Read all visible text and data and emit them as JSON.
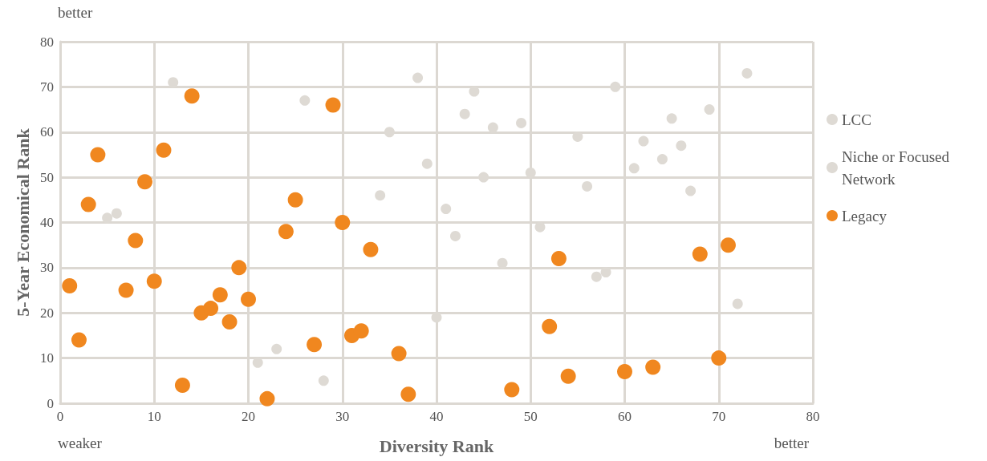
{
  "chart_data": {
    "type": "scatter",
    "xlabel": "Diversity Rank",
    "ylabel": "5-Year Economical Rank",
    "xlim": [
      0,
      80
    ],
    "xticks": [
      0,
      10,
      20,
      30,
      40,
      50,
      60,
      70,
      80
    ],
    "ylim": [
      0,
      80
    ],
    "yticks": [
      0,
      10,
      20,
      30,
      40,
      50,
      60,
      70,
      80
    ],
    "grid": true,
    "legend": "right",
    "marker": "circle",
    "annotations": [
      "better",
      "weaker",
      "better"
    ],
    "series": [
      {
        "name": "LCC",
        "color": "#dedad4",
        "x": [
          43,
          49,
          56,
          47
        ],
        "values": [
          64,
          62,
          48,
          31
        ]
      },
      {
        "name": "Niche or Focused Network",
        "color": "#dedad4",
        "x": [
          12,
          5,
          6,
          26,
          35,
          38,
          39,
          34,
          23,
          21,
          28,
          40,
          44,
          46,
          59,
          73,
          69,
          65,
          55,
          62,
          66,
          64,
          61,
          45,
          50,
          67,
          41,
          42,
          51,
          57,
          58,
          72
        ],
        "values": [
          71,
          41,
          42,
          67,
          60,
          72,
          53,
          46,
          12,
          9,
          5,
          19,
          69,
          61,
          70,
          73,
          65,
          63,
          59,
          58,
          57,
          54,
          52,
          50,
          51,
          47,
          43,
          37,
          39,
          28,
          29,
          22
        ]
      },
      {
        "name": "Legacy",
        "color": "#f0871f",
        "x": [
          1,
          2,
          3,
          4,
          7,
          8,
          9,
          10,
          11,
          13,
          14,
          15,
          16,
          17,
          18,
          19,
          20,
          22,
          24,
          25,
          27,
          29,
          30,
          31,
          32,
          33,
          36,
          37,
          48,
          52,
          53,
          54,
          60,
          63,
          68,
          70,
          71
        ],
        "values": [
          26,
          14,
          44,
          55,
          25,
          36,
          49,
          27,
          56,
          4,
          68,
          20,
          21,
          24,
          18,
          30,
          23,
          1,
          38,
          45,
          13,
          66,
          40,
          15,
          16,
          34,
          11,
          2,
          3,
          17,
          32,
          6,
          7,
          8,
          33,
          10,
          35
        ]
      }
    ]
  }
}
